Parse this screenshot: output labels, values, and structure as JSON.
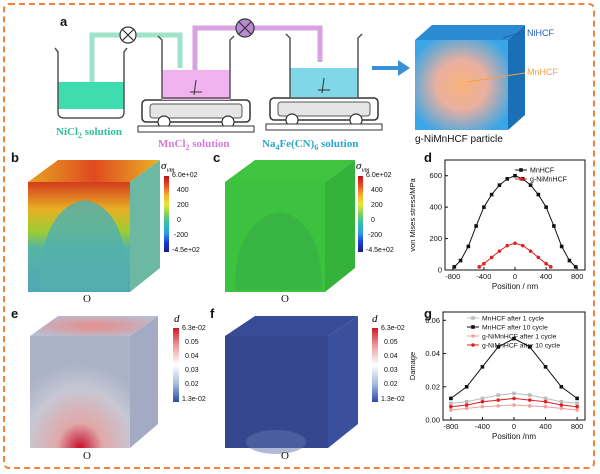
{
  "figure": {
    "panel_labels": {
      "a": "a",
      "b": "b",
      "c": "c",
      "d": "d",
      "e": "e",
      "f": "f",
      "g": "g"
    },
    "panel_a": {
      "solutions": {
        "nicl2": {
          "main": "NiCl",
          "sub": "2",
          "tail": " solution",
          "color": "#2fbf9d"
        },
        "mncl2": {
          "main": "MnCl",
          "sub": "2",
          "tail": " solution",
          "color": "#d37ad4"
        },
        "na4fecn6": {
          "p1": "Na",
          "s1": "4",
          "p2": "Fe(CN)",
          "s2": "6",
          "tail": " solution",
          "color": "#2aa6c9"
        }
      },
      "particle": {
        "shell": "NiHCF",
        "core": "MnHCF",
        "caption": "g-NiMnHCF particle"
      }
    },
    "colorbars": {
      "sigma_symbol": "σ",
      "sigma_sub": "vm",
      "stress_ticks": [
        "6.0e+02",
        "400",
        "200",
        "0",
        "-200",
        "-4.5e+02"
      ],
      "d_symbol": "d",
      "damage_ticks": [
        "6.3e-02",
        "0.05",
        "0.04",
        "0.03",
        "0.02",
        "1.3e-02"
      ]
    },
    "origin_label": "O",
    "colors": {
      "accent_orange": "#f0843c",
      "arrow_blue": "#3a8fd6",
      "mnhcf_label": "#f4a043",
      "nihcf_label": "#1f5fbf"
    }
  },
  "chart_data": [
    {
      "type": "line",
      "panel": "d",
      "xlabel": "Position / nm",
      "ylabel": "von Mises stress/MPa",
      "xlim": [
        -900,
        900
      ],
      "ylim": [
        0,
        700
      ],
      "xticks": [
        -800,
        -400,
        0,
        400,
        800
      ],
      "xtick_labels": [
        "-800",
        "-400",
        "0",
        "400",
        "800"
      ],
      "yticks": [
        0,
        200,
        400,
        600
      ],
      "ytick_labels": [
        "0",
        "200",
        "400",
        "600"
      ],
      "legend_position": "top-right",
      "series": [
        {
          "name": "MnHCF",
          "color": "#111111",
          "marker": "square",
          "x": [
            -780,
            -700,
            -600,
            -500,
            -400,
            -300,
            -200,
            -100,
            0,
            100,
            200,
            300,
            400,
            500,
            600,
            700,
            780
          ],
          "y": [
            20,
            60,
            150,
            280,
            400,
            480,
            540,
            580,
            600,
            580,
            540,
            480,
            400,
            280,
            150,
            60,
            20
          ]
        },
        {
          "name": "g-NiMnHCF",
          "color": "#e02020",
          "marker": "dot",
          "x": [
            -460,
            -400,
            -300,
            -200,
            -100,
            0,
            100,
            200,
            300,
            400,
            460
          ],
          "y": [
            20,
            40,
            80,
            120,
            155,
            170,
            155,
            120,
            80,
            40,
            20
          ]
        }
      ]
    },
    {
      "type": "line",
      "panel": "g",
      "xlabel": "Position /nm",
      "ylabel": "Damage",
      "xlim": [
        -900,
        900
      ],
      "ylim": [
        0,
        0.065
      ],
      "xticks": [
        -800,
        -400,
        0,
        400,
        800
      ],
      "xtick_labels": [
        "-800",
        "-400",
        "0",
        "400",
        "800"
      ],
      "yticks": [
        0,
        0.02,
        0.04,
        0.06
      ],
      "ytick_labels": [
        "0.00",
        "0.02",
        "0.04",
        "0.06"
      ],
      "legend_position": "top",
      "series": [
        {
          "name": "MnHCF after 1 cycle",
          "color": "#bbbbbb",
          "marker": "square",
          "x": [
            -800,
            -600,
            -400,
            -200,
            0,
            200,
            400,
            600,
            800
          ],
          "y": [
            0.01,
            0.011,
            0.013,
            0.015,
            0.016,
            0.015,
            0.013,
            0.011,
            0.01
          ]
        },
        {
          "name": "MnHCF after 10 cycle",
          "color": "#111111",
          "marker": "square",
          "x": [
            -800,
            -600,
            -400,
            -200,
            0,
            200,
            400,
            600,
            800
          ],
          "y": [
            0.013,
            0.02,
            0.032,
            0.044,
            0.049,
            0.044,
            0.032,
            0.02,
            0.013
          ]
        },
        {
          "name": "g-NiMnHCF after 1 cycle",
          "color": "#f2a0a0",
          "marker": "dot",
          "x": [
            -800,
            -600,
            -400,
            -200,
            0,
            200,
            400,
            600,
            800
          ],
          "y": [
            0.006,
            0.007,
            0.008,
            0.0085,
            0.009,
            0.0085,
            0.008,
            0.007,
            0.006
          ]
        },
        {
          "name": "g-NiMnHCF after 10 cycle",
          "color": "#e02020",
          "marker": "dot",
          "x": [
            -800,
            -600,
            -400,
            -200,
            0,
            200,
            400,
            600,
            800
          ],
          "y": [
            0.008,
            0.009,
            0.011,
            0.012,
            0.013,
            0.012,
            0.011,
            0.009,
            0.008
          ]
        }
      ]
    }
  ]
}
